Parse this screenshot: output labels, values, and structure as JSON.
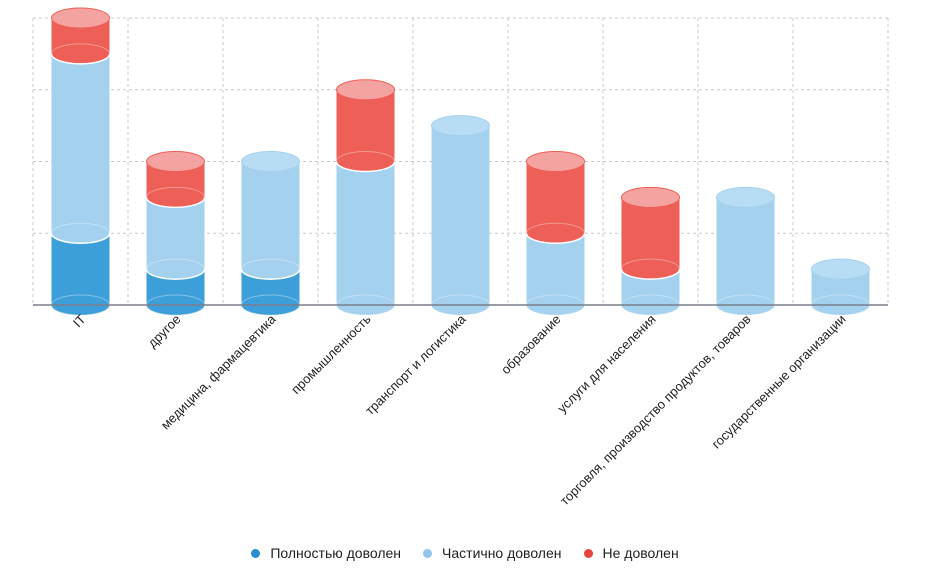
{
  "chart_data": {
    "type": "bar",
    "subtype": "stacked-cylinder",
    "title": "",
    "xlabel": "",
    "ylabel": "",
    "ylim": [
      0,
      4
    ],
    "grid": true,
    "legend_position": "bottom-center",
    "categories": [
      "IT",
      "другое",
      "медицина, фармацевтика",
      "промышленность",
      "транспорт и логистика",
      "образование",
      "услуги для населения",
      "торговля, производство продуктов, товаров",
      "государственные организации"
    ],
    "series": [
      {
        "name": "Полностью доволен",
        "color": "#3d9fd9",
        "values": [
          1,
          0.5,
          0.5,
          0,
          0,
          0,
          0,
          0,
          0
        ]
      },
      {
        "name": "Частично доволен",
        "color": "#a3d1ee",
        "values": [
          2.5,
          1,
          1.5,
          2,
          2.5,
          1,
          0.5,
          1.5,
          0.5
        ]
      },
      {
        "name": "Не доволен",
        "color": "#ee5f57",
        "values": [
          0.5,
          0.5,
          0,
          1,
          0,
          1,
          1,
          0,
          0
        ]
      }
    ]
  },
  "legend": [
    {
      "label": "Полностью доволен",
      "color": "#2a8fcf"
    },
    {
      "label": "Частично доволен",
      "color": "#8fc6ea"
    },
    {
      "label": "Не доволен",
      "color": "#e8433c"
    }
  ]
}
